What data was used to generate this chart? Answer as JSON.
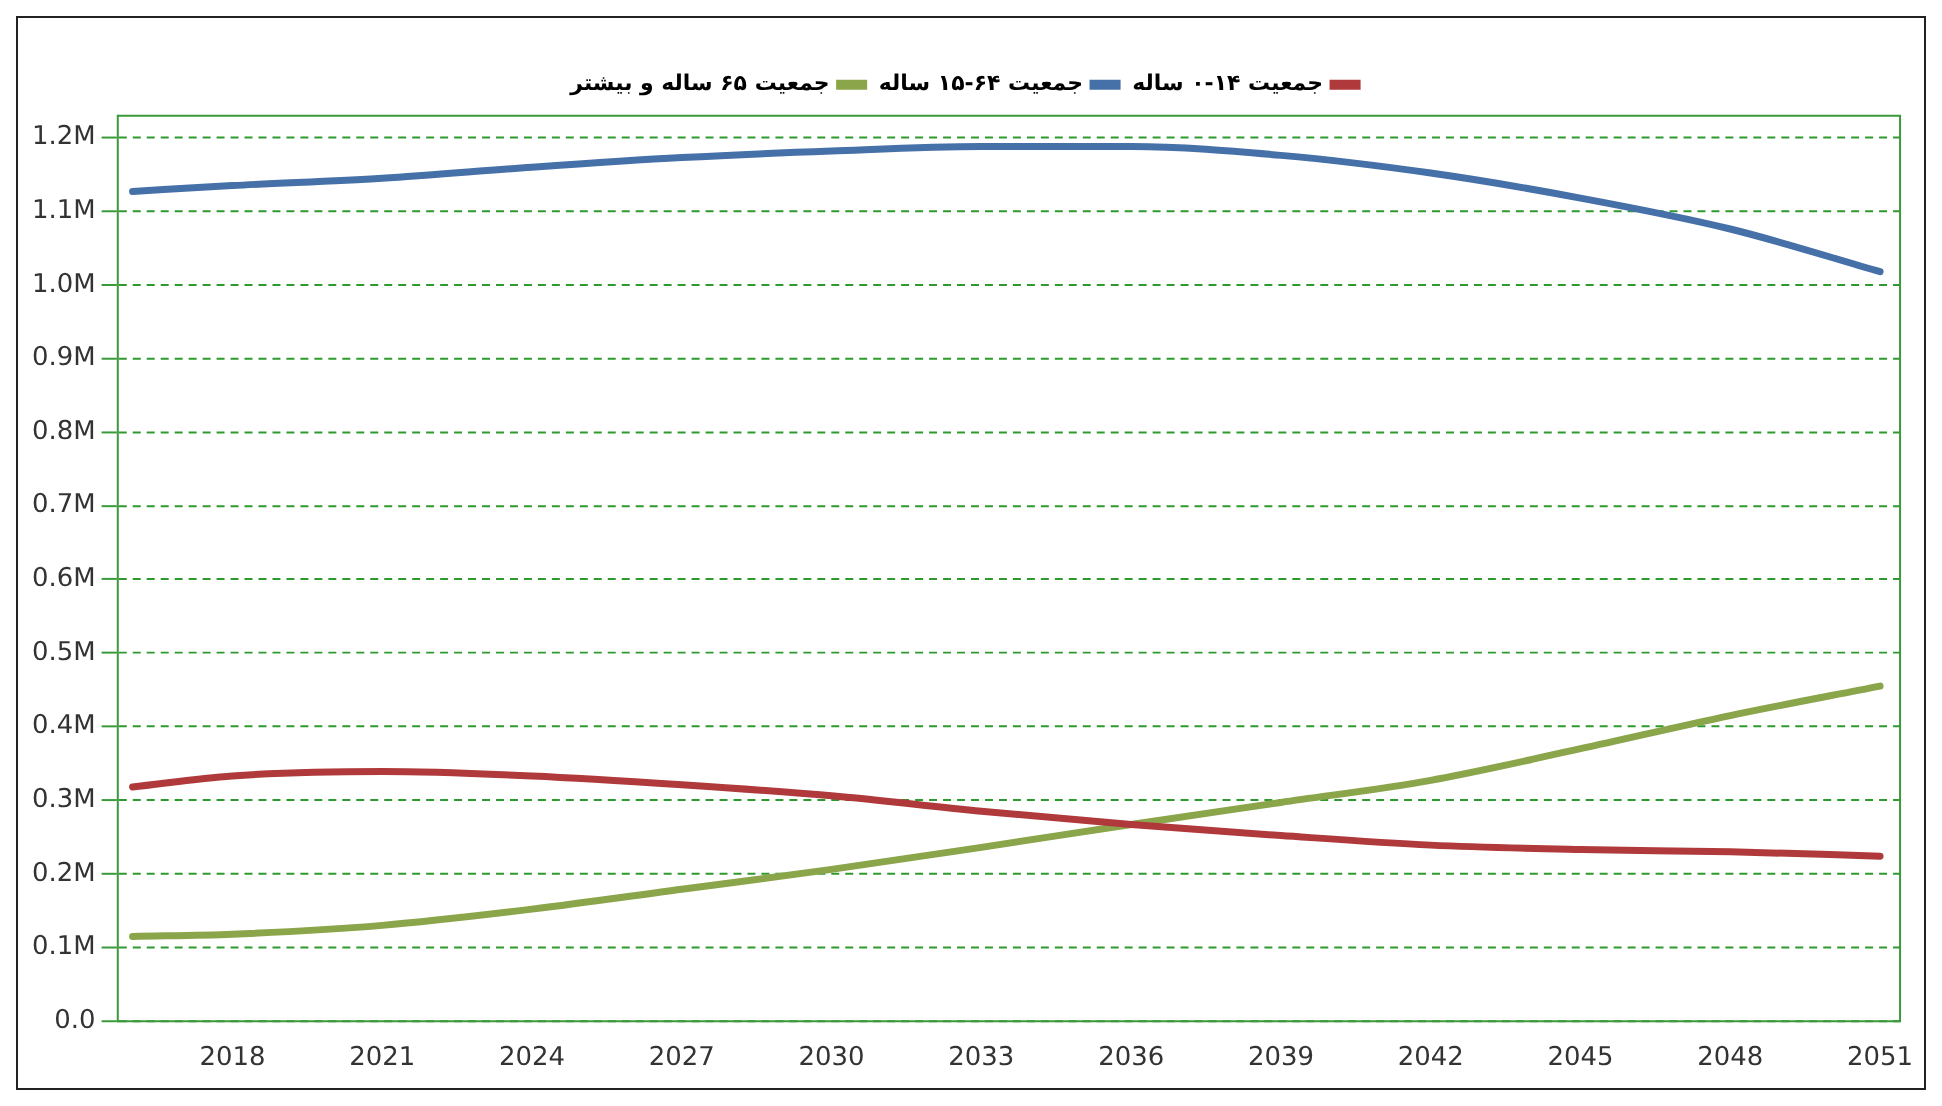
{
  "chart_data": {
    "type": "line",
    "x": [
      2016,
      2018,
      2021,
      2024,
      2027,
      2030,
      2033,
      2036,
      2039,
      2042,
      2045,
      2048,
      2051
    ],
    "series": [
      {
        "name": "جمعیت ۱۴-۰ ساله",
        "color": "#b0393b",
        "values": [
          0.318,
          0.333,
          0.339,
          0.333,
          0.321,
          0.306,
          0.285,
          0.267,
          0.252,
          0.239,
          0.233,
          0.23,
          0.224
        ]
      },
      {
        "name": "جمعیت ۶۴-۱۵ ساله",
        "color": "#4670a8",
        "values": [
          1.127,
          1.135,
          1.145,
          1.16,
          1.173,
          1.182,
          1.188,
          1.188,
          1.176,
          1.152,
          1.118,
          1.076,
          1.018
        ]
      },
      {
        "name": "جمعیت ۶۵ ساله و بیشتر",
        "color": "#8aa54a",
        "values": [
          0.115,
          0.118,
          0.13,
          0.152,
          0.179,
          0.206,
          0.236,
          0.267,
          0.297,
          0.327,
          0.37,
          0.415,
          0.455
        ]
      }
    ],
    "xlim": [
      2015.7,
      2051.4
    ],
    "xticks": [
      2018,
      2021,
      2024,
      2027,
      2030,
      2033,
      2036,
      2039,
      2042,
      2045,
      2048,
      2051
    ],
    "ylim": [
      0,
      1.23
    ],
    "yticks": [
      {
        "value": 0,
        "label": "0.0"
      },
      {
        "value": 0.1,
        "label": "0.1M"
      },
      {
        "value": 0.2,
        "label": "0.2M"
      },
      {
        "value": 0.3,
        "label": "0.3M"
      },
      {
        "value": 0.4,
        "label": "0.4M"
      },
      {
        "value": 0.5,
        "label": "0.5M"
      },
      {
        "value": 0.6,
        "label": "0.6M"
      },
      {
        "value": 0.7,
        "label": "0.7M"
      },
      {
        "value": 0.8,
        "label": "0.8M"
      },
      {
        "value": 0.9,
        "label": "0.9M"
      },
      {
        "value": 1.0,
        "label": "1.0M"
      },
      {
        "value": 1.1,
        "label": "1.1M"
      },
      {
        "value": 1.2,
        "label": "1.2M"
      }
    ],
    "grid": "y",
    "legend": "top",
    "marker": "none",
    "line_style": "solid"
  }
}
